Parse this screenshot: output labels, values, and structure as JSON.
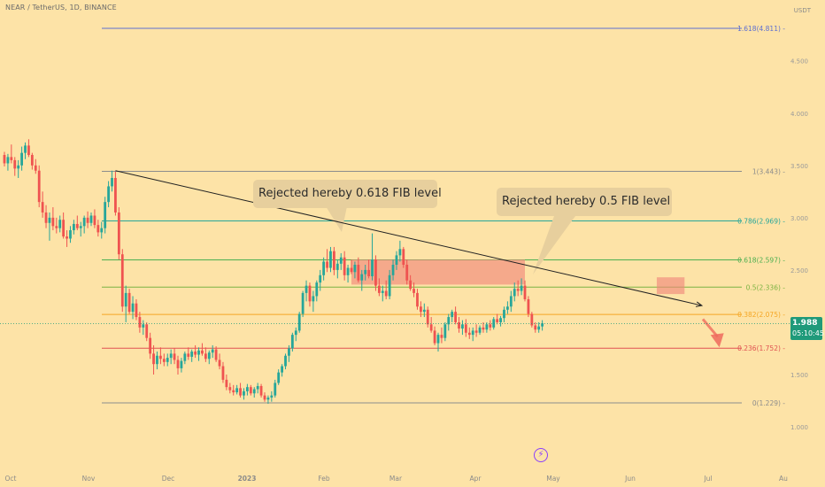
{
  "header": {
    "symbol_title": "NEAR / TetherUS, 1D, BINANCE",
    "currency": "USDT"
  },
  "price_badge": {
    "price": "1.988",
    "countdown": "05:10:45",
    "color": "#1f9a7a"
  },
  "annotations": [
    {
      "text": "Rejected hereby 0.618 FIB level"
    },
    {
      "text": "Rejected hereby 0.5 FIB level"
    }
  ],
  "icons": {
    "lightning": "lightning-icon"
  },
  "chart_data": {
    "type": "candlestick",
    "title": "",
    "x_axis_labels": [
      "Oct",
      "Nov",
      "Dec",
      "2023",
      "Feb",
      "Mar",
      "Apr",
      "May",
      "Jun",
      "Jul",
      "Au"
    ],
    "y_axis_labels": [
      "1.000",
      "1.500",
      "2.000",
      "2.500",
      "3.000",
      "3.500",
      "4.000",
      "4.500"
    ],
    "y_range": [
      0.85,
      5.0
    ],
    "fib_levels": [
      {
        "ratio": "1.618",
        "value": 4.811,
        "label": "1.618(4.811)",
        "color": "#5d6fd1"
      },
      {
        "ratio": "1",
        "value": 3.443,
        "label": "1(3.443)",
        "color": "#8c8c8c"
      },
      {
        "ratio": "0.786",
        "value": 2.969,
        "label": "0.786(2.969)",
        "color": "#26a69a"
      },
      {
        "ratio": "0.618",
        "value": 2.597,
        "label": "0.618(2.597)",
        "color": "#4caf50"
      },
      {
        "ratio": "0.5",
        "value": 2.336,
        "label": "0.5(2.336)",
        "color": "#7cb342"
      },
      {
        "ratio": "0.382",
        "value": 2.075,
        "label": "0.382(2.075)",
        "color": "#f5a623"
      },
      {
        "ratio": "0.236",
        "value": 1.752,
        "label": "0.236(1.752)",
        "color": "#e05252"
      },
      {
        "ratio": "0",
        "value": 1.229,
        "label": "0(1.229)",
        "color": "#8c8c8c"
      }
    ],
    "trendline": {
      "from": {
        "day": 32,
        "price": 3.45
      },
      "to": {
        "day": 201,
        "price": 2.16
      }
    },
    "rejection_zones": [
      {
        "day_start": 100,
        "day_end": 150,
        "price_low": 2.36,
        "price_high": 2.6
      },
      {
        "day_start": 188,
        "day_end": 196,
        "price_low": 2.27,
        "price_high": 2.43
      }
    ],
    "projected_drop_arrow": {
      "from": {
        "day": 200,
        "price": 2.03
      },
      "to": {
        "day": 204,
        "price": 1.76
      }
    },
    "last_price": 1.988,
    "candles": [
      [
        0,
        3.6,
        3.63,
        3.49,
        3.52
      ],
      [
        1,
        3.52,
        3.61,
        3.45,
        3.58
      ],
      [
        2,
        3.58,
        3.7,
        3.52,
        3.55
      ],
      [
        3,
        3.55,
        3.58,
        3.4,
        3.47
      ],
      [
        4,
        3.47,
        3.55,
        3.38,
        3.5
      ],
      [
        5,
        3.5,
        3.68,
        3.45,
        3.62
      ],
      [
        6,
        3.62,
        3.72,
        3.56,
        3.69
      ],
      [
        7,
        3.69,
        3.75,
        3.58,
        3.6
      ],
      [
        8,
        3.6,
        3.62,
        3.46,
        3.5
      ],
      [
        9,
        3.5,
        3.56,
        3.42,
        3.45
      ],
      [
        10,
        3.45,
        3.5,
        3.1,
        3.15
      ],
      [
        11,
        3.15,
        3.25,
        3.0,
        3.05
      ],
      [
        12,
        3.05,
        3.12,
        2.9,
        2.95
      ],
      [
        13,
        2.95,
        3.05,
        2.78,
        3.0
      ],
      [
        14,
        3.0,
        3.1,
        2.88,
        2.92
      ],
      [
        15,
        2.92,
        3.0,
        2.85,
        2.9
      ],
      [
        16,
        2.9,
        3.02,
        2.86,
        2.98
      ],
      [
        17,
        2.98,
        3.05,
        2.8,
        2.82
      ],
      [
        18,
        2.82,
        2.88,
        2.72,
        2.8
      ],
      [
        19,
        2.8,
        2.92,
        2.76,
        2.88
      ],
      [
        20,
        2.88,
        2.98,
        2.84,
        2.94
      ],
      [
        21,
        2.94,
        3.02,
        2.88,
        2.9
      ],
      [
        22,
        2.9,
        2.96,
        2.82,
        2.92
      ],
      [
        23,
        2.92,
        3.02,
        2.85,
        3.0
      ],
      [
        24,
        3.0,
        3.06,
        2.9,
        2.95
      ],
      [
        25,
        2.95,
        3.05,
        2.92,
        3.02
      ],
      [
        26,
        3.02,
        3.08,
        2.9,
        2.93
      ],
      [
        27,
        2.93,
        2.98,
        2.82,
        2.86
      ],
      [
        28,
        2.86,
        2.96,
        2.8,
        2.9
      ],
      [
        29,
        2.9,
        3.2,
        2.85,
        3.15
      ],
      [
        30,
        3.15,
        3.35,
        3.1,
        3.3
      ],
      [
        31,
        3.3,
        3.45,
        3.25,
        3.38
      ],
      [
        32,
        3.38,
        3.44,
        3.02,
        3.05
      ],
      [
        33,
        3.05,
        3.1,
        2.6,
        2.65
      ],
      [
        34,
        2.65,
        2.7,
        2.1,
        2.15
      ],
      [
        35,
        2.15,
        2.35,
        2.0,
        2.28
      ],
      [
        36,
        2.28,
        2.32,
        2.08,
        2.1
      ],
      [
        37,
        2.1,
        2.25,
        2.03,
        2.18
      ],
      [
        38,
        2.18,
        2.22,
        2.02,
        2.05
      ],
      [
        39,
        2.05,
        2.1,
        1.9,
        1.95
      ],
      [
        40,
        1.95,
        2.02,
        1.88,
        1.98
      ],
      [
        41,
        1.98,
        2.0,
        1.82,
        1.85
      ],
      [
        42,
        1.85,
        1.9,
        1.65,
        1.7
      ],
      [
        43,
        1.7,
        1.78,
        1.5,
        1.6
      ],
      [
        44,
        1.6,
        1.72,
        1.55,
        1.68
      ],
      [
        45,
        1.68,
        1.76,
        1.6,
        1.65
      ],
      [
        46,
        1.65,
        1.7,
        1.58,
        1.62
      ],
      [
        47,
        1.62,
        1.7,
        1.58,
        1.66
      ],
      [
        48,
        1.66,
        1.74,
        1.6,
        1.7
      ],
      [
        49,
        1.7,
        1.75,
        1.6,
        1.64
      ],
      [
        50,
        1.64,
        1.68,
        1.5,
        1.56
      ],
      [
        51,
        1.56,
        1.66,
        1.52,
        1.63
      ],
      [
        52,
        1.63,
        1.72,
        1.6,
        1.7
      ],
      [
        53,
        1.7,
        1.76,
        1.64,
        1.67
      ],
      [
        54,
        1.67,
        1.74,
        1.62,
        1.72
      ],
      [
        55,
        1.72,
        1.78,
        1.66,
        1.69
      ],
      [
        56,
        1.69,
        1.76,
        1.63,
        1.73
      ],
      [
        57,
        1.73,
        1.8,
        1.68,
        1.7
      ],
      [
        58,
        1.7,
        1.76,
        1.62,
        1.65
      ],
      [
        59,
        1.65,
        1.73,
        1.6,
        1.71
      ],
      [
        60,
        1.71,
        1.78,
        1.66,
        1.74
      ],
      [
        61,
        1.74,
        1.77,
        1.62,
        1.64
      ],
      [
        62,
        1.64,
        1.7,
        1.55,
        1.58
      ],
      [
        63,
        1.58,
        1.62,
        1.42,
        1.45
      ],
      [
        64,
        1.45,
        1.5,
        1.35,
        1.38
      ],
      [
        65,
        1.38,
        1.42,
        1.32,
        1.35
      ],
      [
        66,
        1.35,
        1.4,
        1.3,
        1.33
      ],
      [
        67,
        1.33,
        1.4,
        1.31,
        1.37
      ],
      [
        68,
        1.37,
        1.42,
        1.28,
        1.3
      ],
      [
        69,
        1.3,
        1.37,
        1.26,
        1.34
      ],
      [
        70,
        1.34,
        1.41,
        1.3,
        1.38
      ],
      [
        71,
        1.38,
        1.4,
        1.3,
        1.32
      ],
      [
        72,
        1.32,
        1.38,
        1.28,
        1.36
      ],
      [
        73,
        1.36,
        1.42,
        1.32,
        1.39
      ],
      [
        74,
        1.39,
        1.41,
        1.28,
        1.3
      ],
      [
        75,
        1.3,
        1.33,
        1.24,
        1.26
      ],
      [
        76,
        1.26,
        1.3,
        1.22,
        1.28
      ],
      [
        77,
        1.28,
        1.34,
        1.24,
        1.3
      ],
      [
        78,
        1.3,
        1.45,
        1.28,
        1.42
      ],
      [
        79,
        1.42,
        1.55,
        1.4,
        1.52
      ],
      [
        80,
        1.52,
        1.6,
        1.48,
        1.58
      ],
      [
        81,
        1.58,
        1.7,
        1.55,
        1.68
      ],
      [
        82,
        1.68,
        1.78,
        1.62,
        1.75
      ],
      [
        83,
        1.75,
        1.9,
        1.72,
        1.88
      ],
      [
        84,
        1.88,
        1.95,
        1.82,
        1.92
      ],
      [
        85,
        1.92,
        2.1,
        1.9,
        2.08
      ],
      [
        86,
        2.08,
        2.3,
        2.05,
        2.28
      ],
      [
        87,
        2.28,
        2.4,
        2.2,
        2.35
      ],
      [
        88,
        2.35,
        2.38,
        2.15,
        2.2
      ],
      [
        89,
        2.2,
        2.3,
        2.1,
        2.25
      ],
      [
        90,
        2.25,
        2.4,
        2.2,
        2.38
      ],
      [
        91,
        2.38,
        2.5,
        2.3,
        2.45
      ],
      [
        92,
        2.45,
        2.62,
        2.4,
        2.58
      ],
      [
        93,
        2.58,
        2.7,
        2.48,
        2.52
      ],
      [
        94,
        2.52,
        2.72,
        2.48,
        2.68
      ],
      [
        95,
        2.68,
        2.72,
        2.45,
        2.5
      ],
      [
        96,
        2.5,
        2.6,
        2.42,
        2.56
      ],
      [
        97,
        2.56,
        2.66,
        2.5,
        2.62
      ],
      [
        98,
        2.62,
        2.68,
        2.4,
        2.45
      ],
      [
        99,
        2.45,
        2.55,
        2.38,
        2.52
      ],
      [
        100,
        2.52,
        2.6,
        2.46,
        2.48
      ],
      [
        101,
        2.48,
        2.58,
        2.42,
        2.55
      ],
      [
        102,
        2.55,
        2.62,
        2.38,
        2.4
      ],
      [
        103,
        2.4,
        2.5,
        2.3,
        2.46
      ],
      [
        104,
        2.46,
        2.55,
        2.4,
        2.5
      ],
      [
        105,
        2.5,
        2.6,
        2.42,
        2.44
      ],
      [
        106,
        2.44,
        2.85,
        2.4,
        2.6
      ],
      [
        107,
        2.6,
        2.64,
        2.3,
        2.35
      ],
      [
        108,
        2.35,
        2.42,
        2.25,
        2.28
      ],
      [
        109,
        2.28,
        2.35,
        2.2,
        2.3
      ],
      [
        110,
        2.3,
        2.4,
        2.22,
        2.25
      ],
      [
        111,
        2.25,
        2.5,
        2.22,
        2.45
      ],
      [
        112,
        2.45,
        2.6,
        2.4,
        2.55
      ],
      [
        113,
        2.55,
        2.68,
        2.5,
        2.64
      ],
      [
        114,
        2.64,
        2.78,
        2.58,
        2.7
      ],
      [
        115,
        2.7,
        2.72,
        2.52,
        2.55
      ],
      [
        116,
        2.55,
        2.6,
        2.36,
        2.4
      ],
      [
        117,
        2.4,
        2.45,
        2.3,
        2.32
      ],
      [
        118,
        2.32,
        2.38,
        2.24,
        2.28
      ],
      [
        119,
        2.28,
        2.32,
        2.12,
        2.15
      ],
      [
        120,
        2.15,
        2.2,
        2.05,
        2.1
      ],
      [
        121,
        2.1,
        2.18,
        2.05,
        2.12
      ],
      [
        122,
        2.12,
        2.15,
        1.95,
        1.98
      ],
      [
        123,
        1.98,
        2.05,
        1.9,
        1.92
      ],
      [
        124,
        1.92,
        1.96,
        1.78,
        1.8
      ],
      [
        125,
        1.8,
        1.9,
        1.72,
        1.88
      ],
      [
        126,
        1.88,
        1.95,
        1.8,
        1.85
      ],
      [
        127,
        1.85,
        2.0,
        1.82,
        1.98
      ],
      [
        128,
        1.98,
        2.08,
        1.92,
        2.05
      ],
      [
        129,
        2.05,
        2.12,
        2.0,
        2.1
      ],
      [
        130,
        2.1,
        2.15,
        1.98,
        2.0
      ],
      [
        131,
        2.0,
        2.05,
        1.9,
        1.94
      ],
      [
        132,
        1.94,
        2.02,
        1.88,
        1.98
      ],
      [
        133,
        1.98,
        2.03,
        1.86,
        1.9
      ],
      [
        134,
        1.9,
        1.95,
        1.84,
        1.88
      ],
      [
        135,
        1.88,
        1.95,
        1.82,
        1.92
      ],
      [
        136,
        1.92,
        1.98,
        1.86,
        1.9
      ],
      [
        137,
        1.9,
        1.97,
        1.88,
        1.95
      ],
      [
        138,
        1.95,
        2.0,
        1.9,
        1.93
      ],
      [
        139,
        1.93,
        2.0,
        1.9,
        1.98
      ],
      [
        140,
        1.98,
        2.02,
        1.92,
        1.95
      ],
      [
        141,
        1.95,
        2.05,
        1.93,
        2.03
      ],
      [
        142,
        2.03,
        2.08,
        1.98,
        2.0
      ],
      [
        143,
        2.0,
        2.06,
        1.96,
        2.04
      ],
      [
        144,
        2.04,
        2.15,
        2.0,
        2.12
      ],
      [
        145,
        2.12,
        2.2,
        2.08,
        2.15
      ],
      [
        146,
        2.15,
        2.3,
        2.1,
        2.25
      ],
      [
        147,
        2.25,
        2.38,
        2.2,
        2.32
      ],
      [
        148,
        2.32,
        2.4,
        2.25,
        2.3
      ],
      [
        149,
        2.3,
        2.42,
        2.26,
        2.35
      ],
      [
        150,
        2.35,
        2.4,
        2.2,
        2.22
      ],
      [
        151,
        2.22,
        2.25,
        2.05,
        2.08
      ],
      [
        152,
        2.08,
        2.1,
        1.95,
        1.97
      ],
      [
        153,
        1.97,
        2.0,
        1.9,
        1.93
      ],
      [
        154,
        1.93,
        2.0,
        1.9,
        1.96
      ],
      [
        155,
        1.96,
        2.02,
        1.92,
        1.99
      ]
    ]
  }
}
